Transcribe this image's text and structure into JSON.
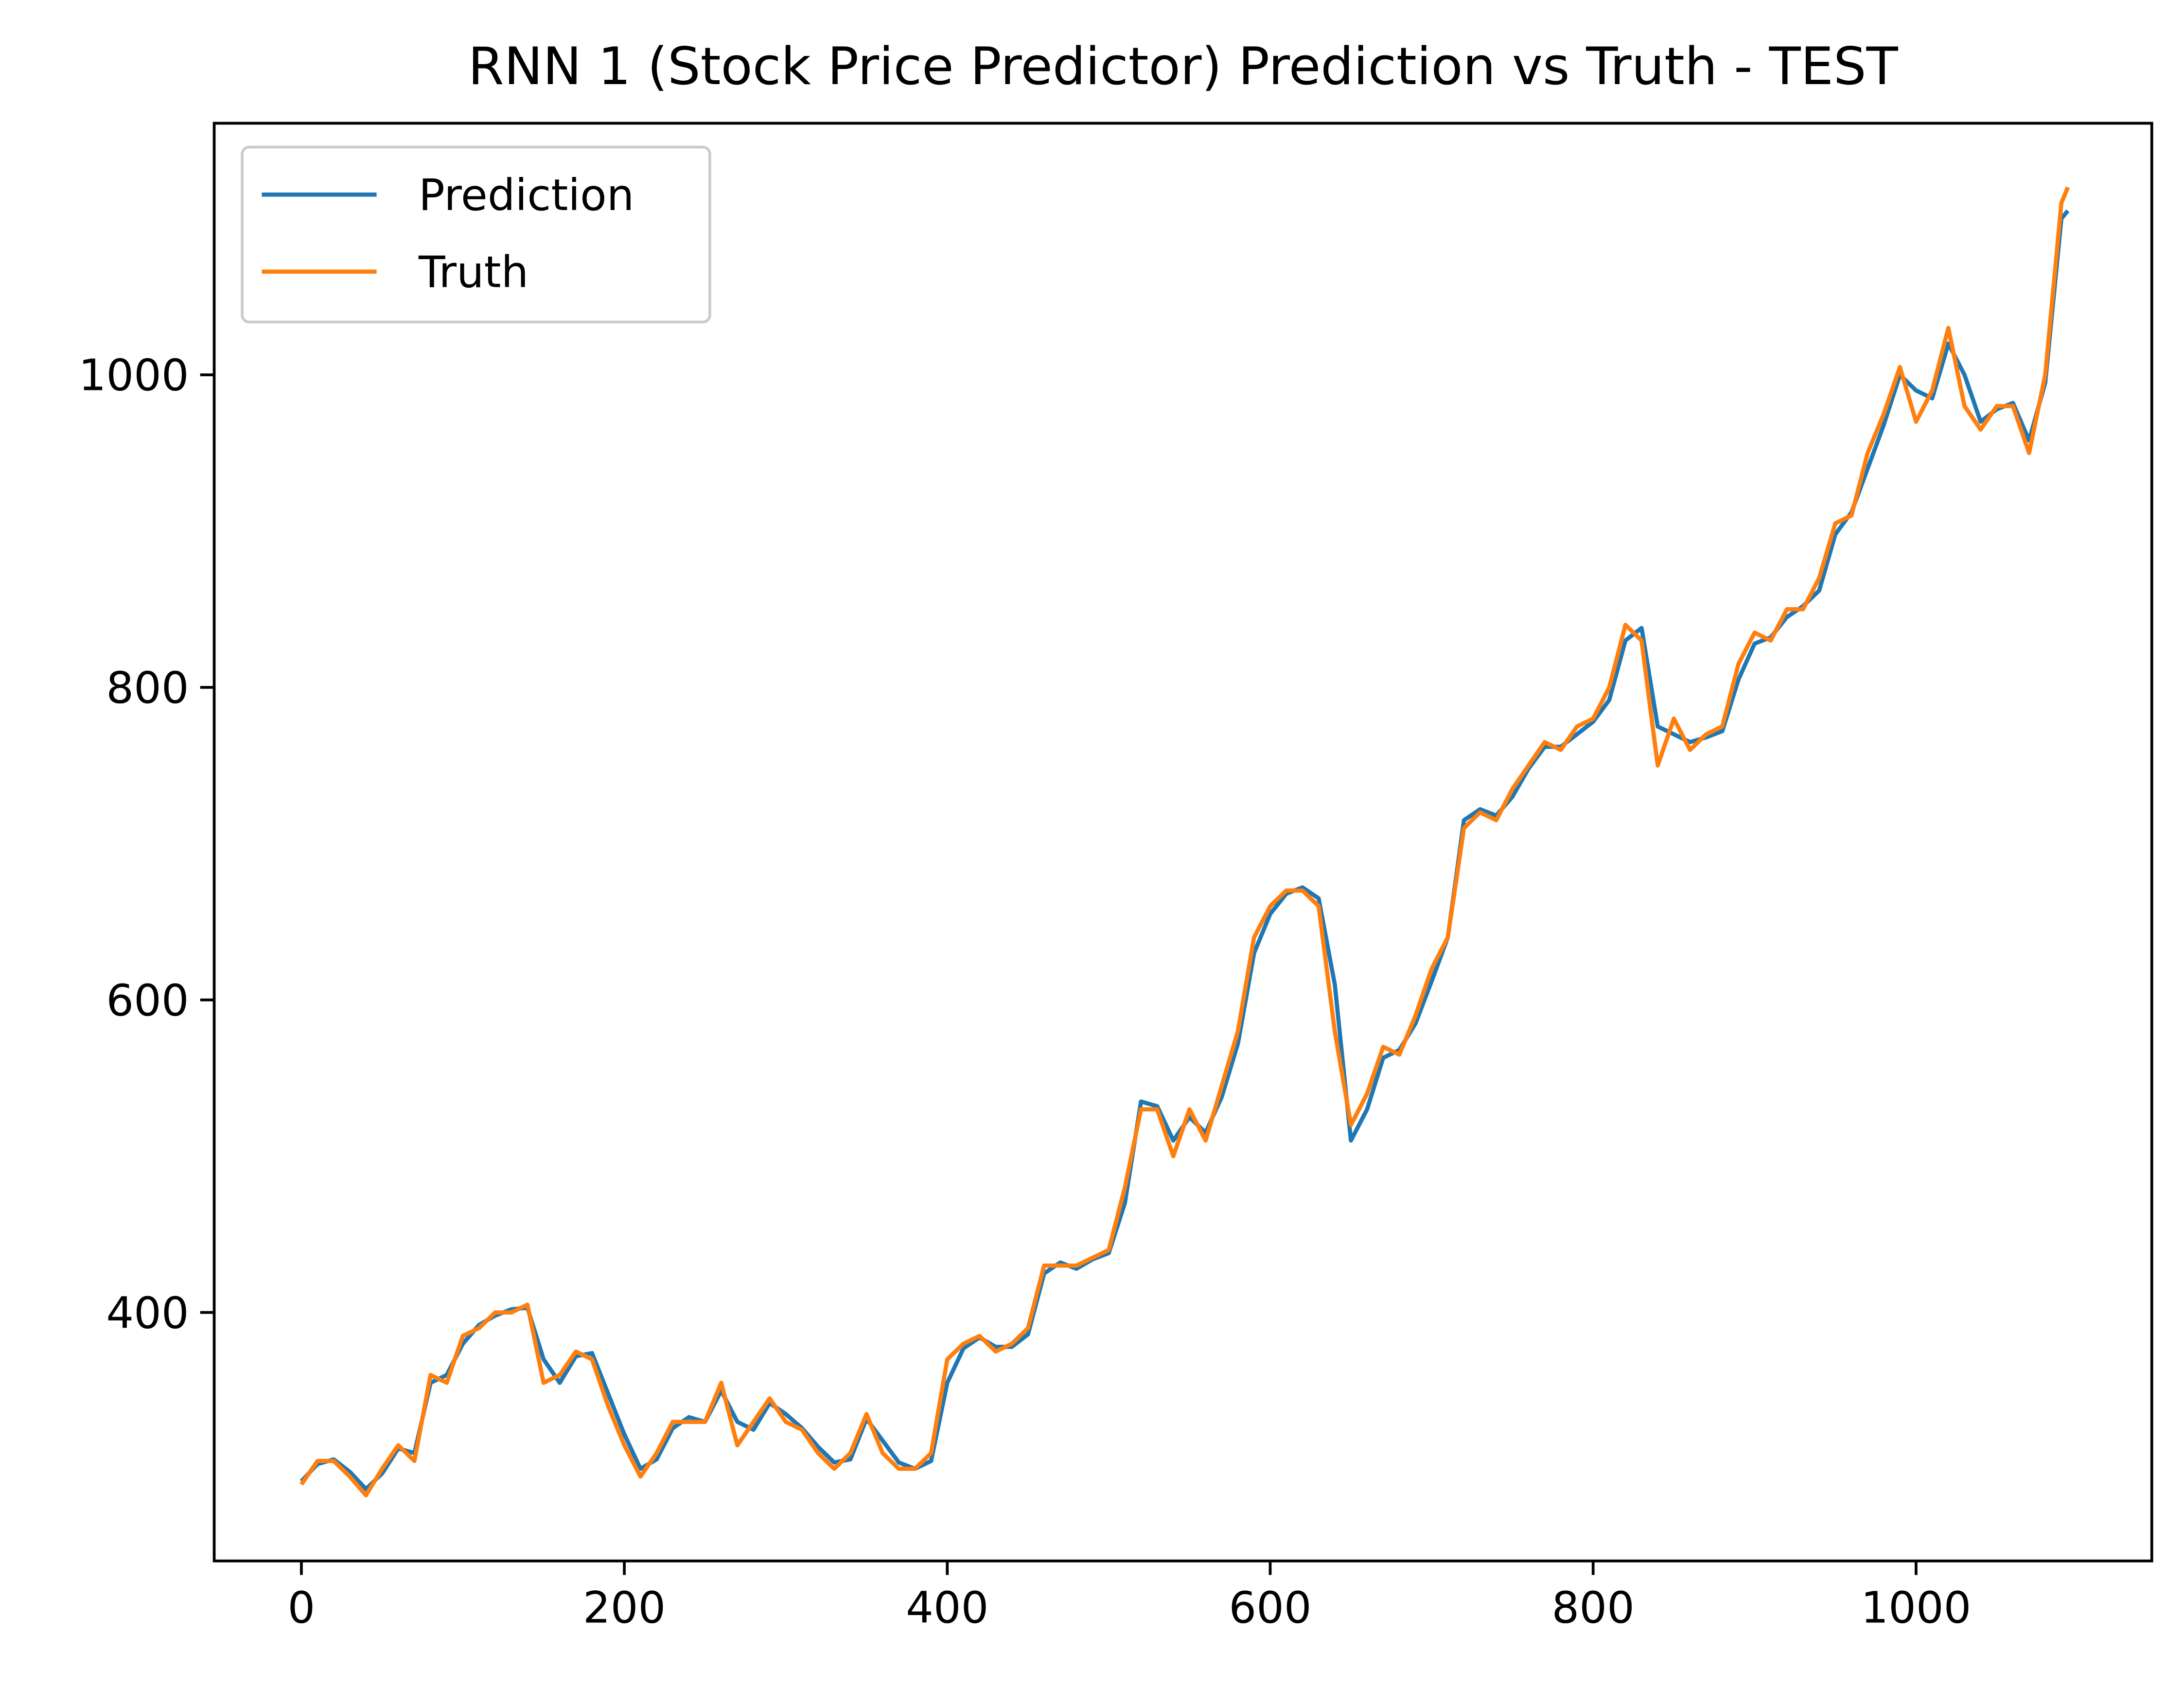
{
  "chart_data": {
    "type": "line",
    "title": "RNN 1 (Stock Price Predictor) Prediction vs Truth - TEST",
    "x": [
      0,
      10,
      20,
      30,
      40,
      50,
      60,
      70,
      80,
      90,
      100,
      110,
      120,
      130,
      140,
      150,
      160,
      170,
      180,
      190,
      200,
      210,
      220,
      230,
      240,
      250,
      260,
      270,
      280,
      290,
      300,
      310,
      320,
      330,
      340,
      350,
      360,
      370,
      380,
      390,
      400,
      410,
      420,
      430,
      440,
      450,
      460,
      470,
      480,
      490,
      500,
      510,
      520,
      530,
      540,
      550,
      560,
      570,
      580,
      590,
      600,
      610,
      620,
      630,
      640,
      650,
      660,
      670,
      680,
      690,
      700,
      710,
      720,
      730,
      740,
      750,
      760,
      770,
      780,
      790,
      800,
      810,
      820,
      830,
      840,
      850,
      860,
      870,
      880,
      890,
      900,
      910,
      920,
      930,
      940,
      950,
      960,
      970,
      980,
      990,
      1000,
      1010,
      1020,
      1030,
      1040,
      1050,
      1060,
      1070,
      1080,
      1090,
      1094
    ],
    "series": [
      {
        "name": "Prediction",
        "color": "#1f77b4",
        "values": [
          292,
          303,
          306,
          298,
          287,
          297,
          313,
          310,
          355,
          360,
          380,
          392,
          398,
          402,
          403,
          370,
          355,
          372,
          374,
          348,
          322,
          300,
          306,
          326,
          333,
          330,
          350,
          330,
          325,
          342,
          335,
          326,
          314,
          304,
          306,
          332,
          318,
          304,
          300,
          305,
          355,
          377,
          384,
          378,
          378,
          386,
          425,
          432,
          428,
          434,
          438,
          470,
          535,
          532,
          510,
          525,
          515,
          538,
          572,
          630,
          655,
          668,
          672,
          665,
          610,
          510,
          530,
          563,
          568,
          585,
          612,
          640,
          715,
          722,
          718,
          730,
          748,
          762,
          762,
          770,
          778,
          792,
          830,
          838,
          775,
          770,
          765,
          768,
          772,
          805,
          828,
          832,
          845,
          852,
          862,
          898,
          912,
          940,
          968,
          1000,
          990,
          985,
          1020,
          1000,
          970,
          978,
          982,
          958,
          995,
          1100,
          1105
        ]
      },
      {
        "name": "Truth",
        "color": "#ff7f0e",
        "values": [
          290,
          305,
          305,
          295,
          283,
          300,
          315,
          305,
          360,
          355,
          385,
          390,
          400,
          400,
          405,
          355,
          360,
          375,
          370,
          340,
          315,
          295,
          310,
          330,
          330,
          330,
          355,
          315,
          330,
          345,
          330,
          325,
          310,
          300,
          310,
          335,
          310,
          300,
          300,
          310,
          370,
          380,
          385,
          375,
          380,
          390,
          430,
          430,
          430,
          435,
          440,
          480,
          530,
          530,
          500,
          530,
          510,
          545,
          580,
          640,
          660,
          670,
          670,
          660,
          580,
          520,
          540,
          570,
          565,
          590,
          620,
          640,
          710,
          720,
          715,
          735,
          750,
          765,
          760,
          775,
          780,
          800,
          840,
          830,
          750,
          780,
          760,
          770,
          775,
          815,
          835,
          830,
          850,
          850,
          870,
          905,
          910,
          950,
          975,
          1005,
          970,
          990,
          1030,
          980,
          965,
          980,
          980,
          950,
          1000,
          1110,
          1120
        ]
      }
    ],
    "xlim": [
      -54,
      1146
    ],
    "ylim": [
      241,
      1161
    ],
    "xticks": [
      0,
      200,
      400,
      600,
      800,
      1000
    ],
    "yticks": [
      400,
      600,
      800,
      1000
    ],
    "legend": "upper left"
  }
}
